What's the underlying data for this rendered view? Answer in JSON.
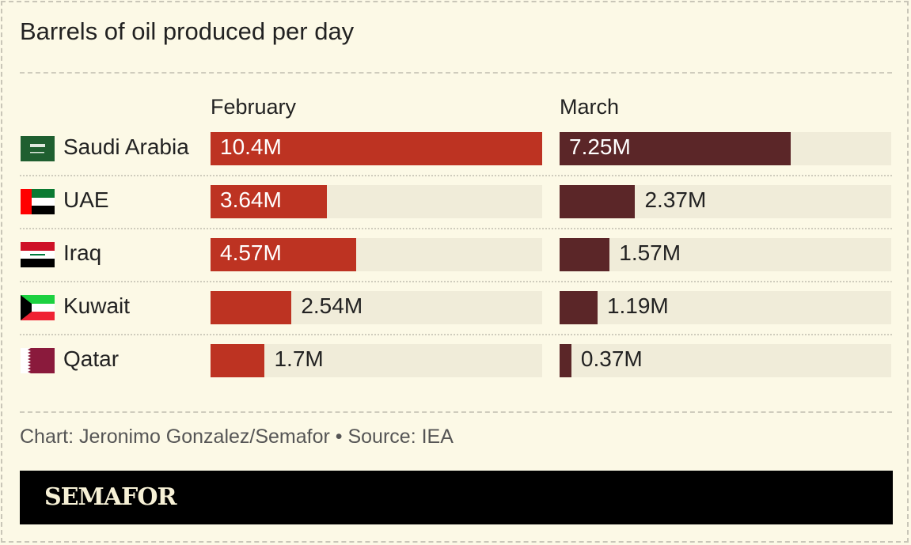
{
  "chart_data": {
    "type": "bar",
    "title": "Barrels of oil produced per day",
    "categories": [
      "Saudi Arabia",
      "UAE",
      "Iraq",
      "Kuwait",
      "Qatar"
    ],
    "flags": [
      "saudi-arabia-flag-icon",
      "uae-flag-icon",
      "iraq-flag-icon",
      "kuwait-flag-icon",
      "qatar-flag-icon"
    ],
    "series": [
      {
        "name": "February",
        "values": [
          10.4,
          3.64,
          4.57,
          2.54,
          1.7
        ],
        "labels": [
          "10.4M",
          "3.64M",
          "4.57M",
          "2.54M",
          "1.7M"
        ],
        "color": "#bd3322"
      },
      {
        "name": "March",
        "values": [
          7.25,
          2.37,
          1.57,
          1.19,
          0.37
        ],
        "labels": [
          "7.25M",
          "2.37M",
          "1.57M",
          "1.19M",
          "0.37M"
        ],
        "color": "#5b2628"
      }
    ],
    "xlim": [
      0,
      10.4
    ],
    "unit": "barrels per day"
  },
  "credit": "Chart: Jeronimo Gonzalez/Semafor • Source: IEA",
  "brand": "SEMAFOR"
}
